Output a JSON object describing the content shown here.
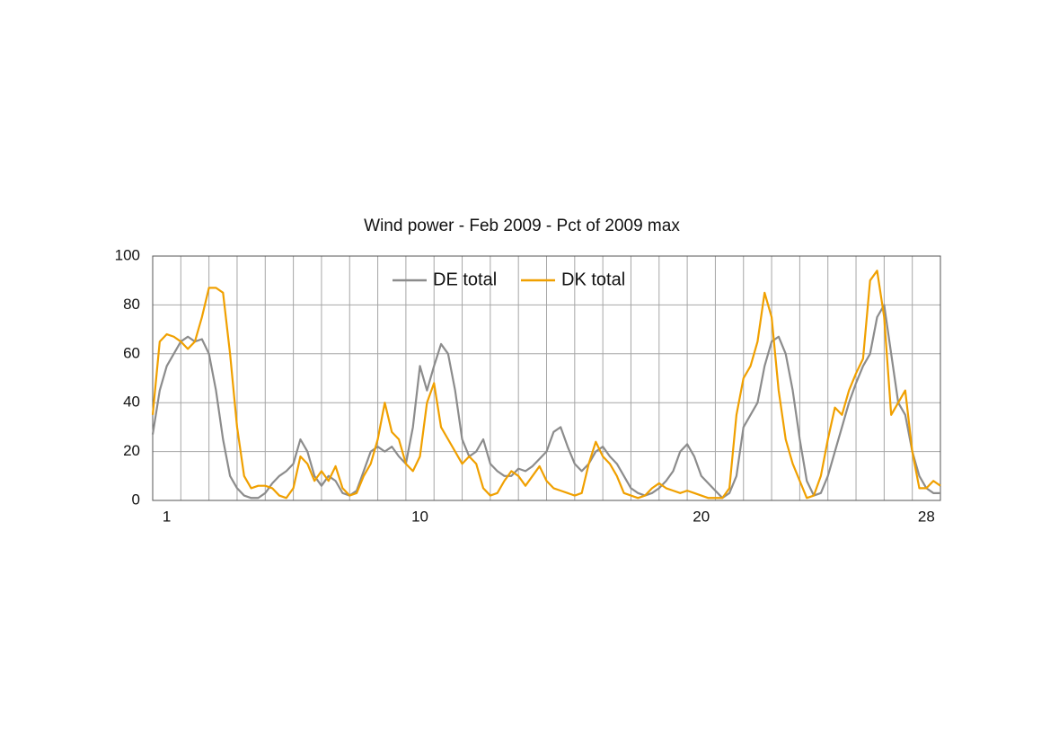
{
  "chart_data": {
    "type": "line",
    "title": "Wind power - Feb 2009 - Pct of 2009 max",
    "x": [
      0.5,
      0.75,
      1,
      1.25,
      1.5,
      1.75,
      2,
      2.25,
      2.5,
      2.75,
      3,
      3.25,
      3.5,
      3.75,
      4,
      4.25,
      4.5,
      4.75,
      5,
      5.25,
      5.5,
      5.75,
      6,
      6.25,
      6.5,
      6.75,
      7,
      7.25,
      7.5,
      7.75,
      8,
      8.25,
      8.5,
      8.75,
      9,
      9.25,
      9.5,
      9.75,
      10,
      10.25,
      10.5,
      10.75,
      11,
      11.25,
      11.5,
      11.75,
      12,
      12.25,
      12.5,
      12.75,
      13,
      13.25,
      13.5,
      13.75,
      14,
      14.25,
      14.5,
      14.75,
      15,
      15.25,
      15.5,
      15.75,
      16,
      16.25,
      16.5,
      16.75,
      17,
      17.25,
      17.5,
      17.75,
      18,
      18.25,
      18.5,
      18.75,
      19,
      19.25,
      19.5,
      19.75,
      20,
      20.25,
      20.5,
      20.75,
      21,
      21.25,
      21.5,
      21.75,
      22,
      22.25,
      22.5,
      22.75,
      23,
      23.25,
      23.5,
      23.75,
      24,
      24.25,
      24.5,
      24.75,
      25,
      25.25,
      25.5,
      25.75,
      26,
      26.25,
      26.5,
      26.75,
      27,
      27.25,
      27.5,
      27.75,
      28,
      28.25,
      28.5
    ],
    "series": [
      {
        "name": "DE total",
        "color": "#8c8c8c",
        "values": [
          27,
          45,
          55,
          60,
          65,
          67,
          65,
          66,
          60,
          45,
          25,
          10,
          5,
          2,
          1,
          1,
          3,
          7,
          10,
          12,
          15,
          25,
          20,
          10,
          6,
          10,
          8,
          3,
          2,
          4,
          12,
          20,
          22,
          20,
          22,
          18,
          15,
          30,
          55,
          45,
          55,
          64,
          60,
          45,
          25,
          18,
          20,
          25,
          15,
          12,
          10,
          10,
          13,
          12,
          14,
          17,
          20,
          28,
          30,
          22,
          15,
          12,
          15,
          20,
          22,
          18,
          15,
          10,
          5,
          3,
          2,
          3,
          5,
          8,
          12,
          20,
          23,
          18,
          10,
          7,
          4,
          1,
          3,
          10,
          30,
          35,
          40,
          55,
          65,
          67,
          60,
          45,
          25,
          8,
          2,
          3,
          10,
          20,
          30,
          40,
          48,
          55,
          60,
          75,
          80,
          60,
          40,
          35,
          20,
          10,
          5,
          3,
          3
        ]
      },
      {
        "name": "DK total",
        "color": "#f0a000",
        "values": [
          35,
          65,
          68,
          67,
          65,
          62,
          65,
          75,
          87,
          87,
          85,
          60,
          30,
          10,
          5,
          6,
          6,
          5,
          2,
          1,
          5,
          18,
          15,
          8,
          12,
          8,
          14,
          5,
          2,
          3,
          10,
          15,
          25,
          40,
          28,
          25,
          15,
          12,
          18,
          40,
          48,
          30,
          25,
          20,
          15,
          18,
          15,
          5,
          2,
          3,
          8,
          12,
          10,
          6,
          10,
          14,
          8,
          5,
          4,
          3,
          2,
          3,
          15,
          24,
          18,
          15,
          10,
          3,
          2,
          1,
          2,
          5,
          7,
          5,
          4,
          3,
          4,
          3,
          2,
          1,
          1,
          1,
          5,
          35,
          50,
          55,
          65,
          85,
          75,
          45,
          25,
          15,
          8,
          1,
          2,
          10,
          25,
          38,
          35,
          45,
          52,
          58,
          90,
          94,
          75,
          35,
          40,
          45,
          20,
          5,
          5,
          8,
          6
        ]
      }
    ],
    "xlim": [
      0.5,
      28.5
    ],
    "xticks": [
      1,
      10,
      20,
      28
    ],
    "x_grid": [
      1.5,
      2.5,
      3.5,
      4.5,
      5.5,
      6.5,
      7.5,
      8.5,
      9.5,
      10.5,
      11.5,
      12.5,
      13.5,
      14.5,
      15.5,
      16.5,
      17.5,
      18.5,
      19.5,
      20.5,
      21.5,
      22.5,
      23.5,
      24.5,
      25.5,
      26.5,
      27.5
    ],
    "ylim": [
      0,
      100
    ],
    "yticks": [
      0,
      20,
      40,
      60,
      80,
      100
    ],
    "grid": true,
    "legend": "top"
  }
}
